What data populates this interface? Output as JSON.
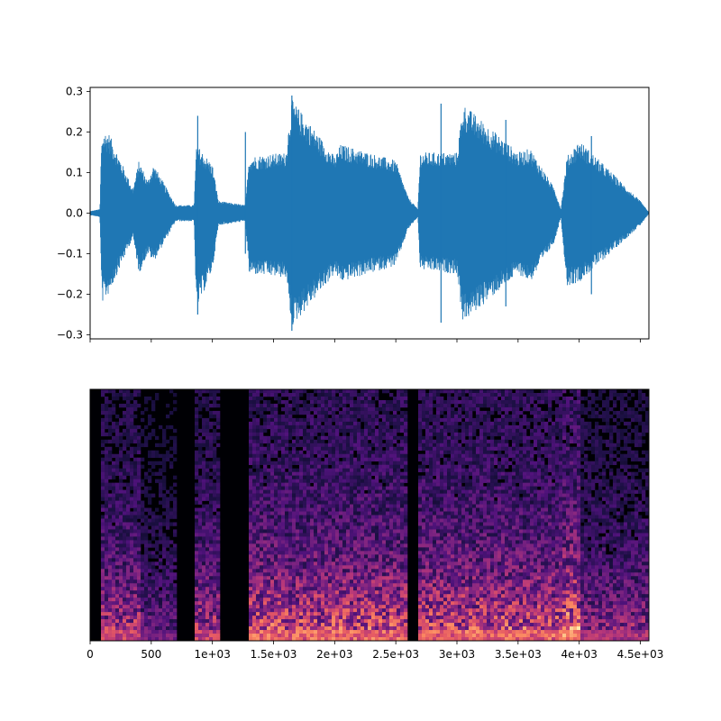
{
  "chart_data": [
    {
      "type": "line",
      "panel": "waveform",
      "ylim": [
        -0.31,
        0.31
      ],
      "xlim": [
        0,
        4570
      ],
      "y_ticks": [
        -0.3,
        -0.2,
        -0.1,
        0.0,
        0.1,
        0.2,
        0.3
      ],
      "y_tick_labels": [
        "−0.3",
        "−0.2",
        "−0.1",
        "0.0",
        "0.1",
        "0.2",
        "0.3"
      ],
      "x_ticks": [
        0,
        500,
        1000,
        1500,
        2000,
        2500,
        3000,
        3500,
        4000,
        4500
      ],
      "x_tick_labels_visible": false,
      "series_color": "#1f77b4",
      "envelope": {
        "x": [
          0,
          80,
          90,
          100,
          150,
          350,
          400,
          470,
          520,
          700,
          850,
          870,
          1000,
          1050,
          1270,
          1300,
          1600,
          1650,
          2000,
          2050,
          2500,
          2600,
          2680,
          2700,
          3000,
          3050,
          3500,
          3600,
          3800,
          3850,
          3900,
          4000,
          4500,
          4570
        ],
        "upper": [
          0.005,
          0.01,
          0.15,
          0.2,
          0.2,
          0.06,
          0.13,
          0.08,
          0.12,
          0.02,
          0.02,
          0.17,
          0.12,
          0.03,
          0.02,
          0.14,
          0.15,
          0.28,
          0.14,
          0.17,
          0.13,
          0.04,
          0.01,
          0.15,
          0.15,
          0.27,
          0.15,
          0.16,
          0.06,
          0.01,
          0.14,
          0.18,
          0.03,
          0.002
        ],
        "lower": [
          -0.005,
          -0.01,
          -0.15,
          -0.22,
          -0.2,
          -0.06,
          -0.15,
          -0.1,
          -0.12,
          -0.02,
          -0.02,
          -0.24,
          -0.14,
          -0.03,
          -0.02,
          -0.15,
          -0.16,
          -0.28,
          -0.15,
          -0.17,
          -0.13,
          -0.04,
          -0.01,
          -0.14,
          -0.15,
          -0.27,
          -0.15,
          -0.17,
          -0.07,
          -0.01,
          -0.18,
          -0.17,
          -0.03,
          -0.002
        ]
      },
      "spikes": [
        {
          "x": 880,
          "top": 0.24,
          "bottom": -0.25
        },
        {
          "x": 1270,
          "top": 0.2,
          "bottom": -0.1
        },
        {
          "x": 1650,
          "top": 0.29,
          "bottom": -0.29
        },
        {
          "x": 2870,
          "top": 0.27,
          "bottom": -0.27
        },
        {
          "x": 3400,
          "top": 0.23,
          "bottom": -0.23
        },
        {
          "x": 4100,
          "top": 0.19,
          "bottom": -0.2
        }
      ]
    },
    {
      "type": "heatmap",
      "panel": "spectrogram",
      "xlim": [
        0,
        4570
      ],
      "x_ticks": [
        0,
        500,
        1000,
        1500,
        2000,
        2500,
        3000,
        3500,
        4000,
        4500
      ],
      "x_tick_labels": [
        "0",
        "500",
        "1e+03",
        "1.5e+03",
        "2e+03",
        "2.5e+03",
        "3e+03",
        "3.5e+03",
        "4e+03",
        "4.5e+03"
      ],
      "colormap": "magma",
      "colormap_stops": [
        "#000004",
        "#1c1044",
        "#4f127b",
        "#812581",
        "#b5367a",
        "#e55964",
        "#fb8761",
        "#fec287",
        "#fcfdbf"
      ],
      "loud_regions": [
        {
          "x_start": 80,
          "x_end": 400,
          "level": 0.7
        },
        {
          "x_start": 400,
          "x_end": 700,
          "level": 0.45
        },
        {
          "x_start": 850,
          "x_end": 1050,
          "level": 0.7
        },
        {
          "x_start": 1300,
          "x_end": 2600,
          "level": 0.85
        },
        {
          "x_start": 2680,
          "x_end": 3850,
          "level": 0.85
        },
        {
          "x_start": 3850,
          "x_end": 4000,
          "level": 1.0
        },
        {
          "x_start": 4000,
          "x_end": 4570,
          "level": 0.6
        }
      ]
    }
  ]
}
